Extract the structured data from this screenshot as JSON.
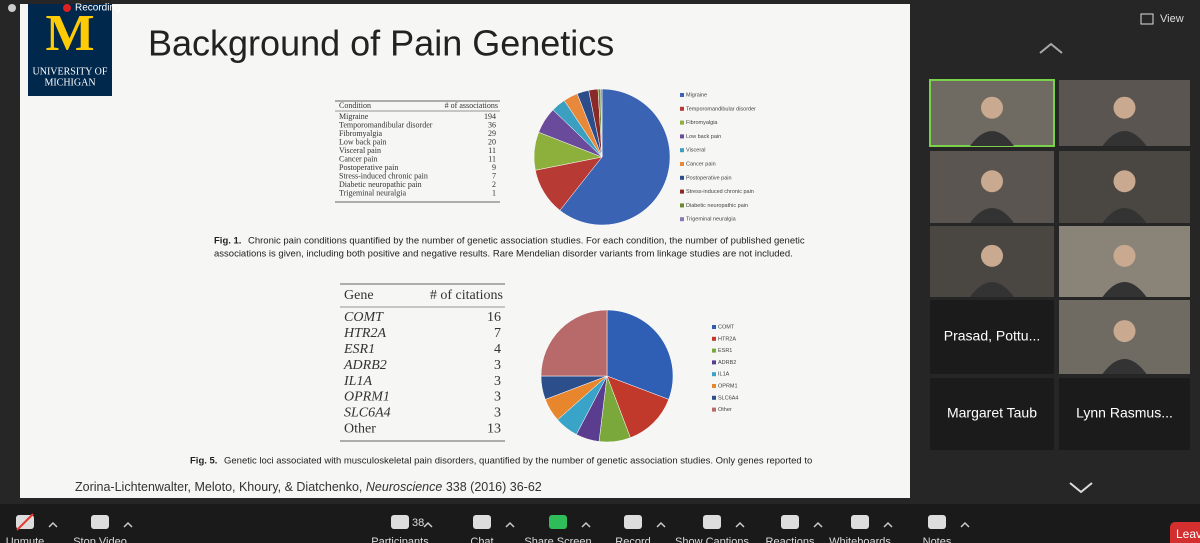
{
  "recording": "Recording",
  "view": "View",
  "slide": {
    "logo": {
      "letter": "M",
      "name": [
        "UNIVERSITY OF",
        "MICHIGAN"
      ]
    },
    "title": "Background of Pain Genetics",
    "fig1": {
      "table": {
        "header": [
          "Condition",
          "# of associations"
        ],
        "rows": [
          [
            "Migraine",
            194
          ],
          [
            "Temporomandibular disorder",
            36
          ],
          [
            "Fibromyalgia",
            29
          ],
          [
            "Low back pain",
            20
          ],
          [
            "Visceral pain",
            11
          ],
          [
            "Cancer pain",
            11
          ],
          [
            "Postoperative pain",
            9
          ],
          [
            "Stress-induced chronic pain",
            7
          ],
          [
            "Diabetic neuropathic pain",
            2
          ],
          [
            "Trigeminal neuralgia",
            1
          ]
        ]
      },
      "chart": {
        "type": "pie",
        "legend": [
          "Migraine",
          "Temporomandibular disorder",
          "Fibromyalgia",
          "Low back pain",
          "Visceral",
          "Cancer pain",
          "Postoperative pain",
          "Stress-induced chronic pain",
          "Diabetic neuropathic pain",
          "Trigeminal neuralgia"
        ],
        "colors": [
          "#3a63b4",
          "#b73a35",
          "#8db03c",
          "#6a4a9a",
          "#3a9fc0",
          "#e8883a",
          "#2c4d8a",
          "#8a2a28",
          "#6d8a30",
          "#8a78b0"
        ]
      },
      "label": "Fig. 1.",
      "caption": [
        "Chronic pain conditions quantified by the number of genetic association studies. For each condition, the number of published genetic",
        "associations is given, including both positive and negative results. Rare Mendelian disorder variants from linkage studies are not included."
      ]
    },
    "fig5": {
      "table": {
        "header": [
          "Gene",
          "# of citations"
        ],
        "rows": [
          [
            "COMT",
            16
          ],
          [
            "HTR2A",
            7
          ],
          [
            "ESR1",
            4
          ],
          [
            "ADRB2",
            3
          ],
          [
            "IL1A",
            3
          ],
          [
            "OPRM1",
            3
          ],
          [
            "SLC6A4",
            3
          ],
          [
            "Other",
            13
          ]
        ]
      },
      "chart": {
        "type": "pie",
        "legend": [
          "COMT",
          "HTR2A",
          "ESR1",
          "ADRB2",
          "IL1A",
          "OPRM1",
          "SLC6A4",
          "Other"
        ],
        "colors": [
          "#2e5fb5",
          "#c0392b",
          "#7aa83a",
          "#5a3d8f",
          "#3aa3c8",
          "#e8862e",
          "#2c4f8c",
          "#b86a6a"
        ]
      },
      "label": "Fig. 5.",
      "caption": [
        "Genetic loci associated with musculoskeletal pain disorders, quantified by the number of genetic association studies. Only genes reported to"
      ]
    },
    "citation": {
      "authors": "Zorina-Lichtenwalter, Meloto, Khoury, & Diatchenko,",
      "journal": "Neuroscience",
      "rest": "338 (2016) 36-62"
    }
  },
  "participants": [
    "Prasad, Pottu...",
    "Margaret Taub",
    "Lynn Rasmus..."
  ],
  "toolbar": [
    {
      "label": "Unmute"
    },
    {
      "label": "Stop Video"
    },
    {
      "label": "Participants",
      "count": 38
    },
    {
      "label": "Chat"
    },
    {
      "label": "Share Screen"
    },
    {
      "label": "Record"
    },
    {
      "label": "Show Captions"
    },
    {
      "label": "Reactions"
    },
    {
      "label": "Whiteboards"
    },
    {
      "label": "Notes"
    },
    {
      "label": "Leave"
    }
  ]
}
